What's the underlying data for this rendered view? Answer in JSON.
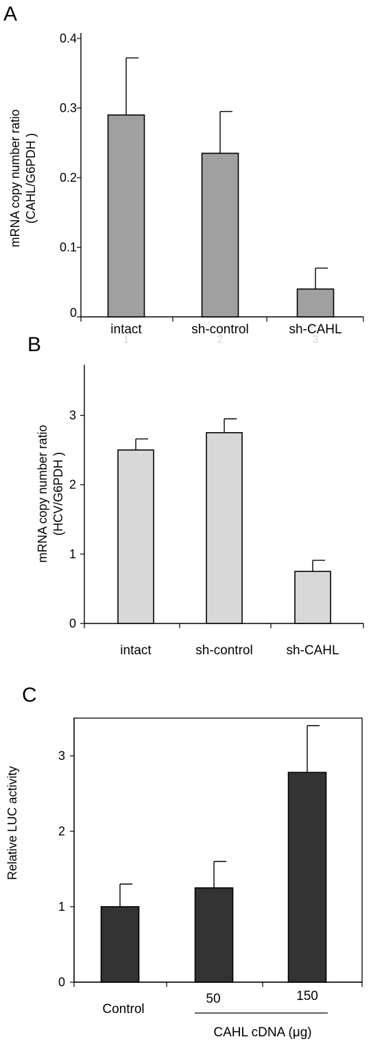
{
  "chart_data": [
    {
      "panel": "A",
      "type": "bar",
      "categories": [
        "intact",
        "sh-control",
        "sh-CAHL"
      ],
      "values": [
        0.29,
        0.235,
        0.04
      ],
      "errors": [
        0.082,
        0.06,
        0.03
      ],
      "faint_labels": [
        "1",
        "2",
        "3"
      ],
      "ylabel_line1": "mRNA copy number ratio",
      "ylabel_line2": "(CAHL/G6PDH )",
      "yticks": [
        "0",
        "0.1",
        "0.2",
        "0.3",
        "0.4"
      ],
      "ylim": [
        0,
        0.4
      ],
      "bar_color": "#a0a0a0"
    },
    {
      "panel": "B",
      "type": "bar",
      "categories": [
        "intact",
        "sh-control",
        "sh-CAHL"
      ],
      "values": [
        2.5,
        2.75,
        0.75
      ],
      "errors": [
        0.16,
        0.2,
        0.16
      ],
      "ylabel_line1": "mRNA copy number ratio",
      "ylabel_line2": "(HCV/G6PDH )",
      "yticks": [
        "0",
        "1",
        "2",
        "3"
      ],
      "ylim": [
        0,
        3.5
      ],
      "bar_color": "#d8d8d8"
    },
    {
      "panel": "C",
      "type": "bar",
      "categories": [
        "Control",
        "50",
        "150"
      ],
      "values": [
        1.0,
        1.25,
        2.78
      ],
      "errors": [
        0.3,
        0.35,
        0.62
      ],
      "xlabel": "CAHL cDNA (μg)",
      "ylabel_line1": "Relative LUC activity",
      "yticks": [
        "0",
        "1",
        "2",
        "3"
      ],
      "ylim": [
        0,
        3.5
      ],
      "bar_color": "#333333"
    }
  ]
}
